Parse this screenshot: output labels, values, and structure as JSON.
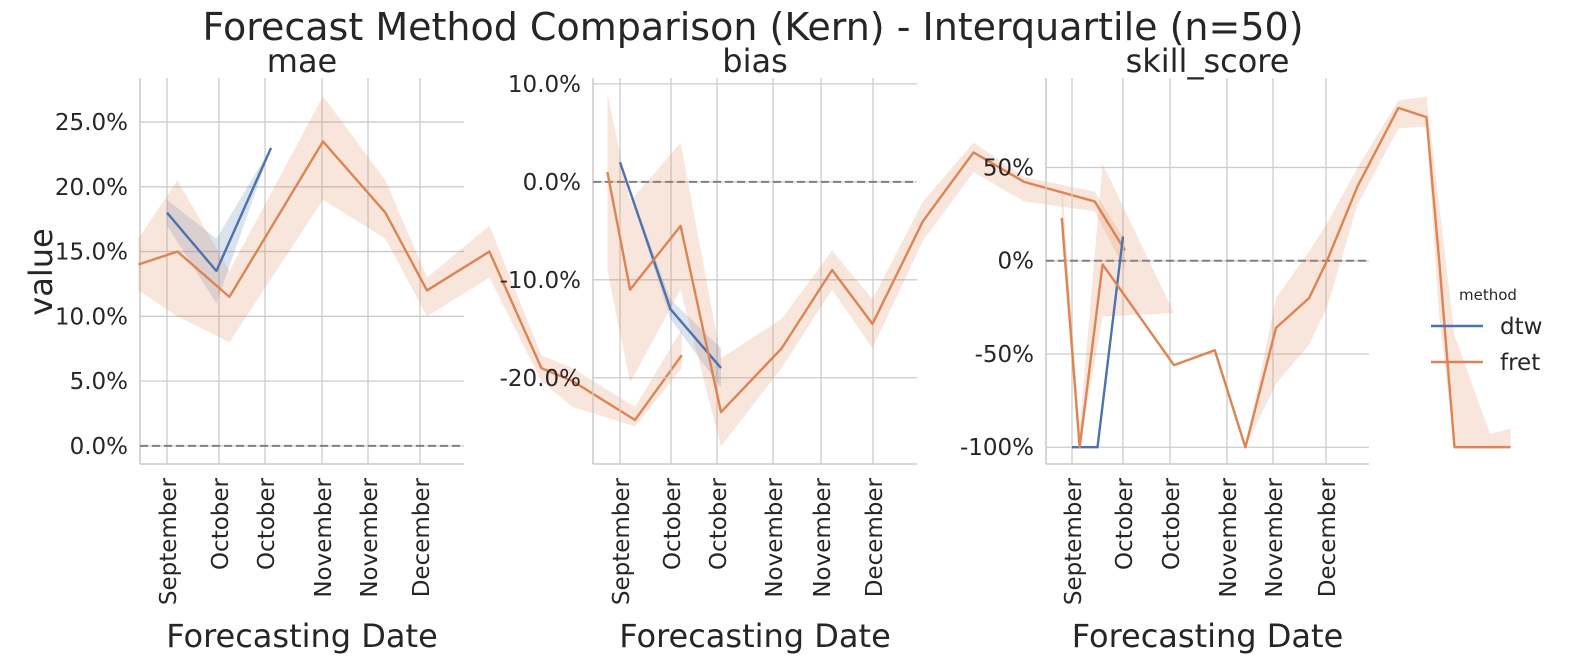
{
  "chart_data": {
    "type": "line",
    "title": "Forecast Method Comparison (Kern) - Interquartile (n=50)",
    "ylabel": "value",
    "xlabel": "Forecasting Date",
    "x_tick_labels": [
      "September",
      "October",
      "October",
      "November",
      "November",
      "December"
    ],
    "colors": {
      "dtw": "#4c72b0",
      "fret": "#dd8452",
      "zero_line": "#808080",
      "grid": "#cccccc"
    },
    "legend": {
      "title": "method",
      "position": "right",
      "entries": [
        "dtw",
        "fret"
      ]
    },
    "grid": true,
    "panels": [
      {
        "name": "mae",
        "y_tick_labels": [
          "0.0%",
          "5.0%",
          "10.0%",
          "15.0%",
          "20.0%",
          "25.0%"
        ],
        "y_ticks": [
          0.0,
          0.05,
          0.1,
          0.15,
          0.2,
          0.25
        ],
        "ylim": [
          -0.014,
          0.284
        ],
        "reference_line": 0,
        "series": [
          {
            "name": "dtw",
            "x": [
              0.0,
              0.95,
              2.0
            ],
            "y": [
              0.18,
              0.135,
              0.23
            ],
            "lo": [
              0.17,
              0.11,
              0.23
            ],
            "hi": [
              0.19,
              0.16,
              0.23
            ]
          },
          {
            "name": "fret",
            "x": [
              -0.55,
              0.2,
              1.2,
              3.0,
              4.2,
              5.0,
              6.2,
              7.2,
              7.8,
              9.0,
              9.9
            ],
            "y": [
              0.14,
              0.15,
              0.115,
              0.235,
              0.18,
              0.12,
              0.15,
              0.06,
              0.05,
              0.02,
              0.07
            ],
            "lo": [
              0.12,
              0.1,
              0.08,
              0.19,
              0.16,
              0.1,
              0.13,
              0.05,
              0.03,
              0.015,
              0.06
            ],
            "hi": [
              0.16,
              0.205,
              0.135,
              0.27,
              0.205,
              0.13,
              0.17,
              0.07,
              0.06,
              0.03,
              0.09
            ]
          }
        ]
      },
      {
        "name": "bias",
        "y_tick_labels": [
          "-20.0%",
          "-10.0%",
          "0.0%",
          "10.0%"
        ],
        "y_ticks": [
          -0.2,
          -0.1,
          0.0,
          0.1
        ],
        "ylim": [
          -0.288,
          0.106
        ],
        "reference_line": 0,
        "series": [
          {
            "name": "dtw",
            "x": [
              0.0,
              1.0,
              2.0
            ],
            "y": [
              0.02,
              -0.13,
              -0.19
            ],
            "lo": [
              0.02,
              -0.14,
              -0.21
            ],
            "hi": [
              0.02,
              -0.12,
              -0.17
            ]
          },
          {
            "name": "fret",
            "x": [
              -0.25,
              0.2,
              1.2,
              2.0,
              3.2,
              4.2,
              5.0,
              6.0,
              7.0,
              8.0,
              9.4,
              10.0
            ],
            "y": [
              0.01,
              -0.11,
              -0.045,
              -0.235,
              -0.17,
              -0.09,
              -0.145,
              -0.04,
              0.03,
              0.0,
              -0.02,
              -0.07
            ],
            "lo": [
              -0.09,
              -0.205,
              -0.11,
              -0.27,
              -0.19,
              -0.11,
              -0.17,
              -0.06,
              0.01,
              -0.02,
              -0.03,
              -0.09
            ],
            "hi": [
              0.09,
              -0.02,
              0.04,
              -0.18,
              -0.14,
              -0.07,
              -0.12,
              -0.02,
              0.04,
              0.005,
              -0.01,
              -0.06
            ]
          }
        ]
      },
      {
        "name": "skill_score",
        "y_tick_labels": [
          "-100%",
          "-50%",
          "0%",
          "50%"
        ],
        "y_ticks": [
          -1.0,
          -0.5,
          0.0,
          0.5
        ],
        "ylim": [
          -1.09,
          0.98
        ],
        "reference_line": 0,
        "series": [
          {
            "name": "dtw",
            "x": [
              0.0,
              0.5,
              1.0
            ],
            "y": [
              -1.0,
              -1.0,
              0.13
            ],
            "lo": [
              -1.0,
              -1.0,
              0.13
            ],
            "hi": [
              -1.0,
              -1.0,
              0.13
            ]
          },
          {
            "name": "fret",
            "x": [
              -0.2,
              0.15,
              0.6,
              2.0,
              2.8,
              3.4,
              4.0,
              4.65,
              5.0,
              5.6,
              6.4,
              6.95,
              7.2,
              7.5,
              8.2,
              8.6
            ],
            "y": [
              0.23,
              -1.0,
              -0.02,
              -0.56,
              -0.48,
              -1.0,
              -0.36,
              -0.2,
              0.0,
              0.4,
              0.82,
              0.77,
              0.0,
              -1.0,
              -1.0,
              -1.0
            ],
            "lo": [
              0.12,
              -1.0,
              -0.3,
              -0.28,
              -0.28,
              -1.0,
              -0.66,
              -0.45,
              -0.25,
              0.3,
              0.71,
              0.72,
              -0.3,
              -1.0,
              -1.0,
              -1.0
            ],
            "hi": [
              0.42,
              -0.9,
              0.52,
              -0.28,
              -0.28,
              -1.0,
              -0.2,
              0.05,
              0.2,
              0.5,
              0.86,
              0.88,
              0.3,
              -0.4,
              -0.93,
              -0.9
            ]
          }
        ]
      }
    ]
  }
}
